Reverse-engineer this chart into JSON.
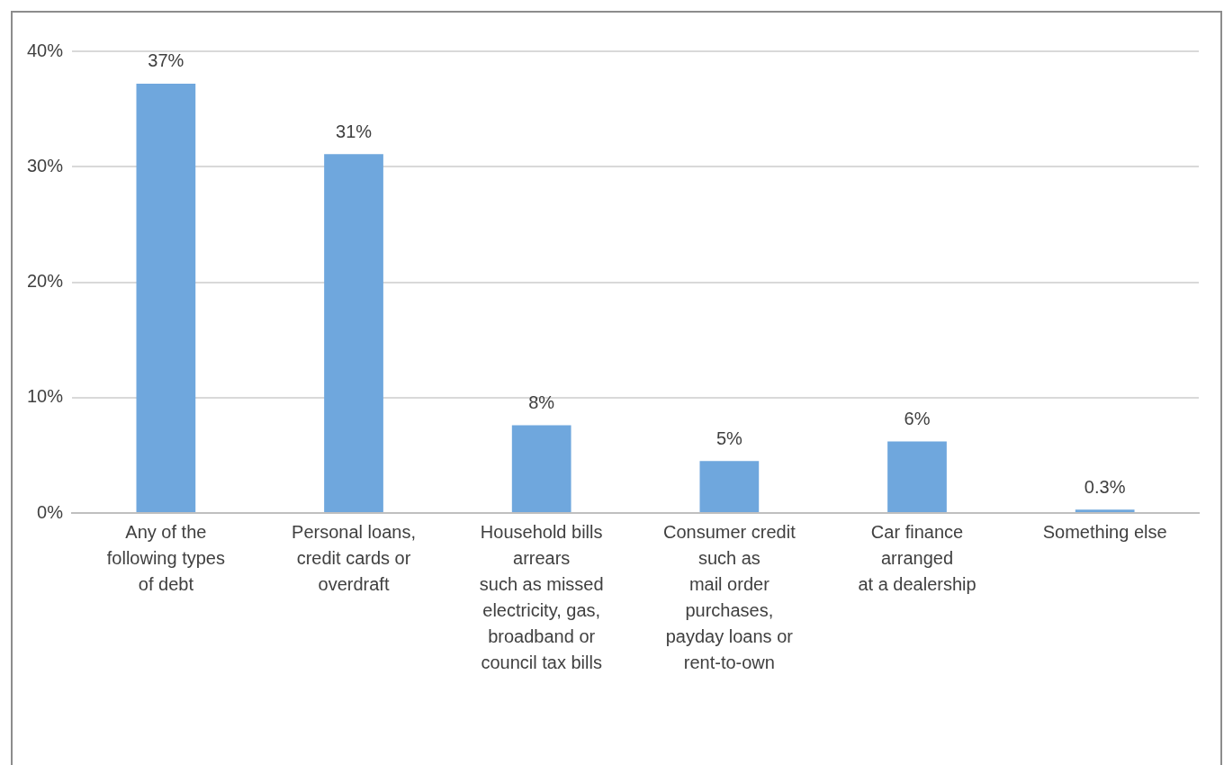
{
  "chart_data": {
    "type": "bar",
    "categories": [
      "Any of the\nfollowing types\nof debt",
      "Personal loans,\ncredit cards or\noverdraft",
      "Household bills\narrears\nsuch as missed\nelectricity, gas,\nbroadband or\ncouncil tax bills",
      "Consumer credit\nsuch as\nmail order\npurchases,\npayday loans or\nrent-to-own",
      "Car finance\narranged\nat a dealership",
      "Something else"
    ],
    "values": [
      37.2,
      31.1,
      7.6,
      4.5,
      6.2,
      0.3
    ],
    "value_labels": [
      "37%",
      "31%",
      "8%",
      "5%",
      "6%",
      "0.3%"
    ],
    "color": "#6fa7dd",
    "ylim": [
      0,
      40
    ],
    "yticks": [
      {
        "value": 0,
        "label": "0%"
      },
      {
        "value": 10,
        "label": "10%"
      },
      {
        "value": 20,
        "label": "20%"
      },
      {
        "value": 30,
        "label": "30%"
      },
      {
        "value": 40,
        "label": "40%"
      }
    ],
    "grid": "y",
    "legend": false
  }
}
